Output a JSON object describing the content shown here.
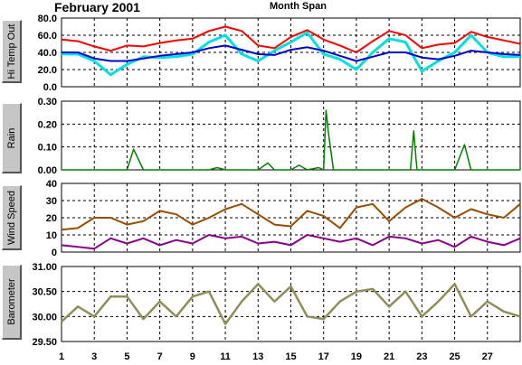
{
  "header": {
    "title": "February 2001",
    "subtitle": "Month Span"
  },
  "x_ticks": [
    "1",
    "3",
    "5",
    "7",
    "9",
    "11",
    "13",
    "15",
    "17",
    "19",
    "21",
    "23",
    "25",
    "27"
  ],
  "colors": {
    "hi_temp": "#ff0000",
    "temp_cyan": "#00e0e0",
    "temp_blue": "#0000cc",
    "rain": "#008000",
    "wind_brown": "#994d00",
    "wind_purple": "#8b008b",
    "barometer": "#8f8f5a"
  },
  "chart_data": [
    {
      "type": "line",
      "ylabel": "Hi Temp Out",
      "ylim": [
        0,
        80
      ],
      "y_ticks": [
        "80.0",
        "60.0",
        "40.0",
        "20.0",
        "0.0"
      ],
      "x": [
        1,
        2,
        3,
        4,
        5,
        6,
        7,
        8,
        9,
        10,
        11,
        12,
        13,
        14,
        15,
        16,
        17,
        18,
        19,
        20,
        21,
        22,
        23,
        24,
        25,
        26,
        27,
        28,
        29
      ],
      "series": [
        {
          "values": [
            55,
            53,
            47,
            42,
            48,
            47,
            51,
            54,
            56,
            65,
            70,
            65,
            48,
            45,
            58,
            66,
            55,
            48,
            40,
            53,
            65,
            60,
            45,
            49,
            51,
            64,
            58,
            54,
            50
          ]
        },
        {
          "values": [
            38,
            38,
            30,
            14,
            26,
            35,
            34,
            35,
            38,
            52,
            60,
            38,
            30,
            42,
            52,
            63,
            38,
            32,
            20,
            40,
            56,
            52,
            18,
            30,
            40,
            60,
            40,
            35,
            35
          ]
        },
        {
          "values": [
            40,
            40,
            33,
            30,
            30,
            33,
            36,
            38,
            40,
            45,
            48,
            43,
            38,
            37,
            43,
            46,
            42,
            36,
            30,
            35,
            40,
            40,
            34,
            32,
            36,
            42,
            40,
            38,
            37
          ]
        }
      ]
    },
    {
      "type": "line",
      "ylabel": "Rain",
      "ylim": [
        0,
        0.3
      ],
      "y_ticks": [
        "0.30",
        "0.20",
        "0.10",
        "0.00"
      ],
      "x": [
        1,
        2,
        3,
        4,
        5,
        5.4,
        6,
        7,
        9,
        10,
        10.5,
        11,
        13,
        13.6,
        14,
        15,
        15.5,
        16,
        16.7,
        17,
        17.15,
        17.3,
        17.6,
        18,
        19,
        21,
        22.3,
        22.5,
        22.7,
        23,
        25,
        25.6,
        26,
        29
      ],
      "series": [
        {
          "values": [
            0,
            0,
            0,
            0,
            0,
            0.09,
            0,
            0,
            0,
            0,
            0.01,
            0,
            0,
            0.03,
            0,
            0,
            0.02,
            0,
            0.01,
            0,
            0.26,
            0.16,
            0,
            0,
            0,
            0,
            0,
            0.17,
            0,
            0,
            0,
            0.11,
            0,
            0
          ]
        }
      ]
    },
    {
      "type": "line",
      "ylabel": "Wind Speed",
      "ylim": [
        0,
        40
      ],
      "y_ticks": [
        "40",
        "30",
        "20",
        "10",
        "0"
      ],
      "x": [
        1,
        2,
        3,
        4,
        5,
        6,
        7,
        8,
        9,
        10,
        11,
        12,
        13,
        14,
        15,
        16,
        17,
        18,
        19,
        20,
        21,
        22,
        23,
        24,
        25,
        26,
        27,
        28,
        29
      ],
      "series": [
        {
          "values": [
            13,
            14,
            20,
            20,
            16,
            18,
            24,
            22,
            16,
            20,
            25,
            28,
            22,
            16,
            15,
            24,
            21,
            14,
            26,
            28,
            18,
            26,
            31,
            26,
            20,
            25,
            22,
            20,
            28
          ]
        },
        {
          "values": [
            4,
            3,
            2,
            8,
            5,
            8,
            4,
            7,
            5,
            10,
            8,
            9,
            5,
            6,
            4,
            10,
            8,
            6,
            8,
            4,
            9,
            8,
            5,
            7,
            3,
            9,
            6,
            4,
            8
          ]
        }
      ]
    },
    {
      "type": "line",
      "ylabel": "Barometer",
      "ylim": [
        29.5,
        31.0
      ],
      "y_ticks": [
        "31.00",
        "30.50",
        "30.00",
        "29.50"
      ],
      "x": [
        1,
        2,
        3,
        4,
        5,
        6,
        7,
        8,
        9,
        10,
        11,
        12,
        13,
        14,
        15,
        16,
        17,
        18,
        19,
        20,
        21,
        22,
        23,
        24,
        25,
        26,
        27,
        28,
        29
      ],
      "series": [
        {
          "values": [
            29.9,
            30.2,
            30.0,
            30.4,
            30.4,
            29.95,
            30.3,
            30.0,
            30.4,
            30.5,
            29.85,
            30.3,
            30.65,
            30.3,
            30.6,
            30.0,
            29.95,
            30.3,
            30.5,
            30.55,
            30.2,
            30.5,
            30.0,
            30.3,
            30.65,
            30.0,
            30.3,
            30.1,
            30.0
          ]
        }
      ]
    }
  ]
}
